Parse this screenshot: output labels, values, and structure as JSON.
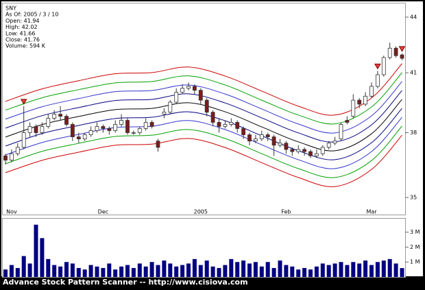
{
  "chart_data": [
    {
      "type": "candlestick",
      "info": [
        "SNY",
        "As Of: 2005 / 3 / 10",
        "Open: 41.94",
        "High: 42.02",
        "Low: 41.66",
        "Close: 41.76",
        "Volume: 594 K"
      ],
      "categories": [
        null,
        "Nov",
        null,
        null,
        null,
        null,
        null,
        null,
        null,
        null,
        null,
        null,
        null,
        null,
        null,
        null,
        "Dec",
        null,
        null,
        null,
        null,
        null,
        null,
        null,
        null,
        null,
        null,
        null,
        null,
        null,
        null,
        null,
        "2005",
        null,
        null,
        null,
        null,
        null,
        null,
        null,
        null,
        null,
        null,
        null,
        null,
        null,
        "Feb",
        null,
        null,
        null,
        null,
        null,
        null,
        null,
        null,
        null,
        null,
        null,
        null,
        null,
        "Mar",
        null,
        null,
        null,
        null,
        null
      ],
      "open": [
        36.9,
        36.7,
        37.0,
        37.3,
        38.0,
        38.3,
        38.0,
        38.3,
        38.7,
        38.9,
        38.8,
        38.4,
        37.8,
        37.7,
        37.9,
        38.1,
        38.3,
        38.2,
        38.1,
        38.4,
        38.6,
        38.0,
        38.0,
        38.2,
        38.5,
        37.6,
        38.9,
        39.0,
        39.5,
        40.0,
        40.2,
        40.3,
        40.1,
        39.6,
        39.0,
        38.5,
        38.3,
        38.4,
        38.5,
        38.2,
        37.9,
        37.6,
        37.7,
        37.9,
        37.8,
        37.4,
        37.5,
        37.2,
        37.1,
        37.2,
        37.1,
        36.9,
        37.0,
        37.3,
        37.5,
        37.7,
        38.6,
        38.8,
        39.6,
        39.4,
        39.8,
        40.3,
        40.9,
        41.8,
        42.3,
        41.94
      ],
      "high": [
        37.0,
        37.2,
        37.5,
        39.3,
        38.5,
        38.4,
        38.5,
        38.9,
        39.1,
        39.3,
        38.9,
        38.5,
        38.0,
        38.0,
        38.3,
        38.5,
        38.4,
        38.3,
        38.6,
        38.9,
        38.7,
        38.1,
        38.3,
        38.7,
        38.6,
        37.7,
        39.2,
        39.6,
        40.2,
        40.4,
        40.5,
        40.4,
        40.2,
        39.7,
        39.1,
        38.7,
        38.6,
        38.7,
        38.6,
        38.3,
        38.0,
        37.9,
        38.1,
        38.0,
        37.9,
        37.7,
        37.6,
        37.3,
        37.4,
        37.3,
        37.2,
        37.2,
        37.4,
        37.6,
        37.8,
        38.5,
        38.8,
        39.9,
        39.7,
        40.0,
        40.5,
        41.1,
        41.9,
        42.6,
        42.4,
        42.02
      ],
      "low": [
        36.5,
        36.6,
        36.9,
        37.2,
        37.8,
        37.8,
        37.9,
        38.2,
        38.6,
        38.6,
        38.3,
        37.6,
        37.5,
        37.6,
        37.8,
        38.0,
        38.0,
        37.9,
        38.0,
        38.3,
        37.9,
        37.9,
        37.9,
        38.1,
        38.2,
        37.1,
        38.7,
        38.9,
        39.4,
        39.9,
        40.1,
        39.9,
        39.4,
        38.8,
        38.3,
        38.0,
        38.2,
        38.3,
        38.0,
        37.7,
        37.4,
        37.5,
        37.6,
        37.6,
        36.9,
        37.3,
        37.0,
        36.9,
        37.0,
        36.9,
        36.8,
        36.8,
        36.9,
        37.2,
        37.4,
        37.6,
        38.4,
        38.7,
        39.2,
        39.3,
        39.7,
        40.2,
        40.8,
        41.7,
        41.8,
        41.66
      ],
      "close": [
        36.7,
        37.0,
        37.3,
        38.0,
        38.3,
        38.0,
        38.3,
        38.7,
        38.9,
        38.8,
        38.4,
        37.8,
        37.7,
        37.9,
        38.1,
        38.3,
        38.2,
        38.1,
        38.4,
        38.6,
        38.0,
        38.0,
        38.2,
        38.5,
        38.3,
        37.3,
        39.0,
        39.5,
        40.0,
        40.2,
        40.3,
        40.1,
        39.6,
        39.0,
        38.5,
        38.3,
        38.4,
        38.5,
        38.2,
        37.9,
        37.6,
        37.7,
        37.9,
        37.8,
        37.4,
        37.5,
        37.2,
        37.1,
        37.2,
        37.1,
        36.9,
        37.0,
        37.3,
        37.5,
        37.6,
        38.4,
        38.5,
        39.6,
        39.4,
        39.8,
        40.3,
        40.9,
        41.8,
        42.3,
        41.9,
        41.76
      ],
      "up_color": "#ffffff",
      "down_color": "#7b1c1c",
      "signals": [
        3,
        61,
        65
      ],
      "signal_color": "#e04040",
      "bands": {
        "x": [
          0,
          6,
          12,
          18,
          24,
          30,
          36,
          42,
          48,
          54,
          60,
          65
        ],
        "series": [
          {
            "color": "#cc0000",
            "values": [
              39.54,
              40.17,
              40.59,
              40.95,
              41.01,
              41.3,
              40.83,
              40.06,
              39.3,
              38.86,
              39.71,
              41.48
            ]
          },
          {
            "color": "#00a000",
            "values": [
              39.1,
              39.72,
              40.13,
              40.48,
              40.55,
              40.84,
              40.37,
              39.6,
              38.86,
              38.43,
              39.26,
              41.01
            ]
          },
          {
            "color": "#3333cc",
            "values": [
              38.66,
              39.27,
              39.68,
              40.03,
              40.09,
              40.37,
              39.91,
              39.16,
              38.42,
              37.99,
              38.82,
              40.55
            ]
          },
          {
            "color": "#000080",
            "values": [
              38.22,
              38.83,
              39.23,
              39.58,
              39.64,
              39.92,
              39.46,
              38.72,
              37.99,
              37.56,
              38.38,
              40.09
            ]
          },
          {
            "color": "#000000",
            "values": [
              37.79,
              38.39,
              38.79,
              39.13,
              39.19,
              39.47,
              39.02,
              38.28,
              37.56,
              37.14,
              37.95,
              39.64
            ]
          },
          {
            "color": "#000080",
            "values": [
              37.36,
              37.96,
              38.35,
              38.69,
              38.75,
              39.02,
              38.58,
              37.85,
              37.14,
              36.72,
              37.52,
              39.19
            ]
          },
          {
            "color": "#3333cc",
            "values": [
              36.94,
              37.53,
              37.92,
              38.25,
              38.31,
              38.59,
              38.15,
              37.42,
              36.72,
              36.31,
              37.1,
              38.75
            ]
          },
          {
            "color": "#00a000",
            "values": [
              36.53,
              37.11,
              37.49,
              37.82,
              37.88,
              38.15,
              37.72,
              37.0,
              36.31,
              35.9,
              36.68,
              38.32
            ]
          },
          {
            "color": "#cc0000",
            "values": [
              36.12,
              36.69,
              37.07,
              37.4,
              37.45,
              37.72,
              37.29,
              36.58,
              35.9,
              35.49,
              36.27,
              37.88
            ]
          }
        ]
      },
      "ylim": [
        34.25,
        44.77
      ],
      "yticks": [
        35,
        38,
        41,
        44
      ],
      "log_scale": true
    },
    {
      "type": "bar",
      "color": "#000080",
      "values": [
        500000,
        800000,
        600000,
        1400000,
        900000,
        3500000,
        2600000,
        1200000,
        800000,
        700000,
        1000000,
        900000,
        600000,
        500000,
        800000,
        700000,
        600000,
        900000,
        500000,
        700000,
        800000,
        600000,
        900000,
        700000,
        1000000,
        800000,
        1100000,
        900000,
        700000,
        800000,
        900000,
        1200000,
        800000,
        1100000,
        700000,
        600000,
        800000,
        1200000,
        1000000,
        1100000,
        900000,
        1000000,
        700000,
        1000000,
        600000,
        1100000,
        800000,
        700000,
        500000,
        600000,
        500000,
        700000,
        900000,
        800000,
        900000,
        1000000,
        800000,
        1000000,
        900000,
        1100000,
        800000,
        1000000,
        1100000,
        1200000,
        900000,
        594000
      ],
      "ylim": [
        0,
        3900000
      ],
      "yticks": [
        {
          "value": 1000000,
          "label": "1 M"
        },
        {
          "value": 2000000,
          "label": "2 M"
        },
        {
          "value": 3000000,
          "label": "3 M"
        }
      ]
    }
  ],
  "footer": "Advance Stock Pattern Scanner -- http://www.cisiova.com"
}
